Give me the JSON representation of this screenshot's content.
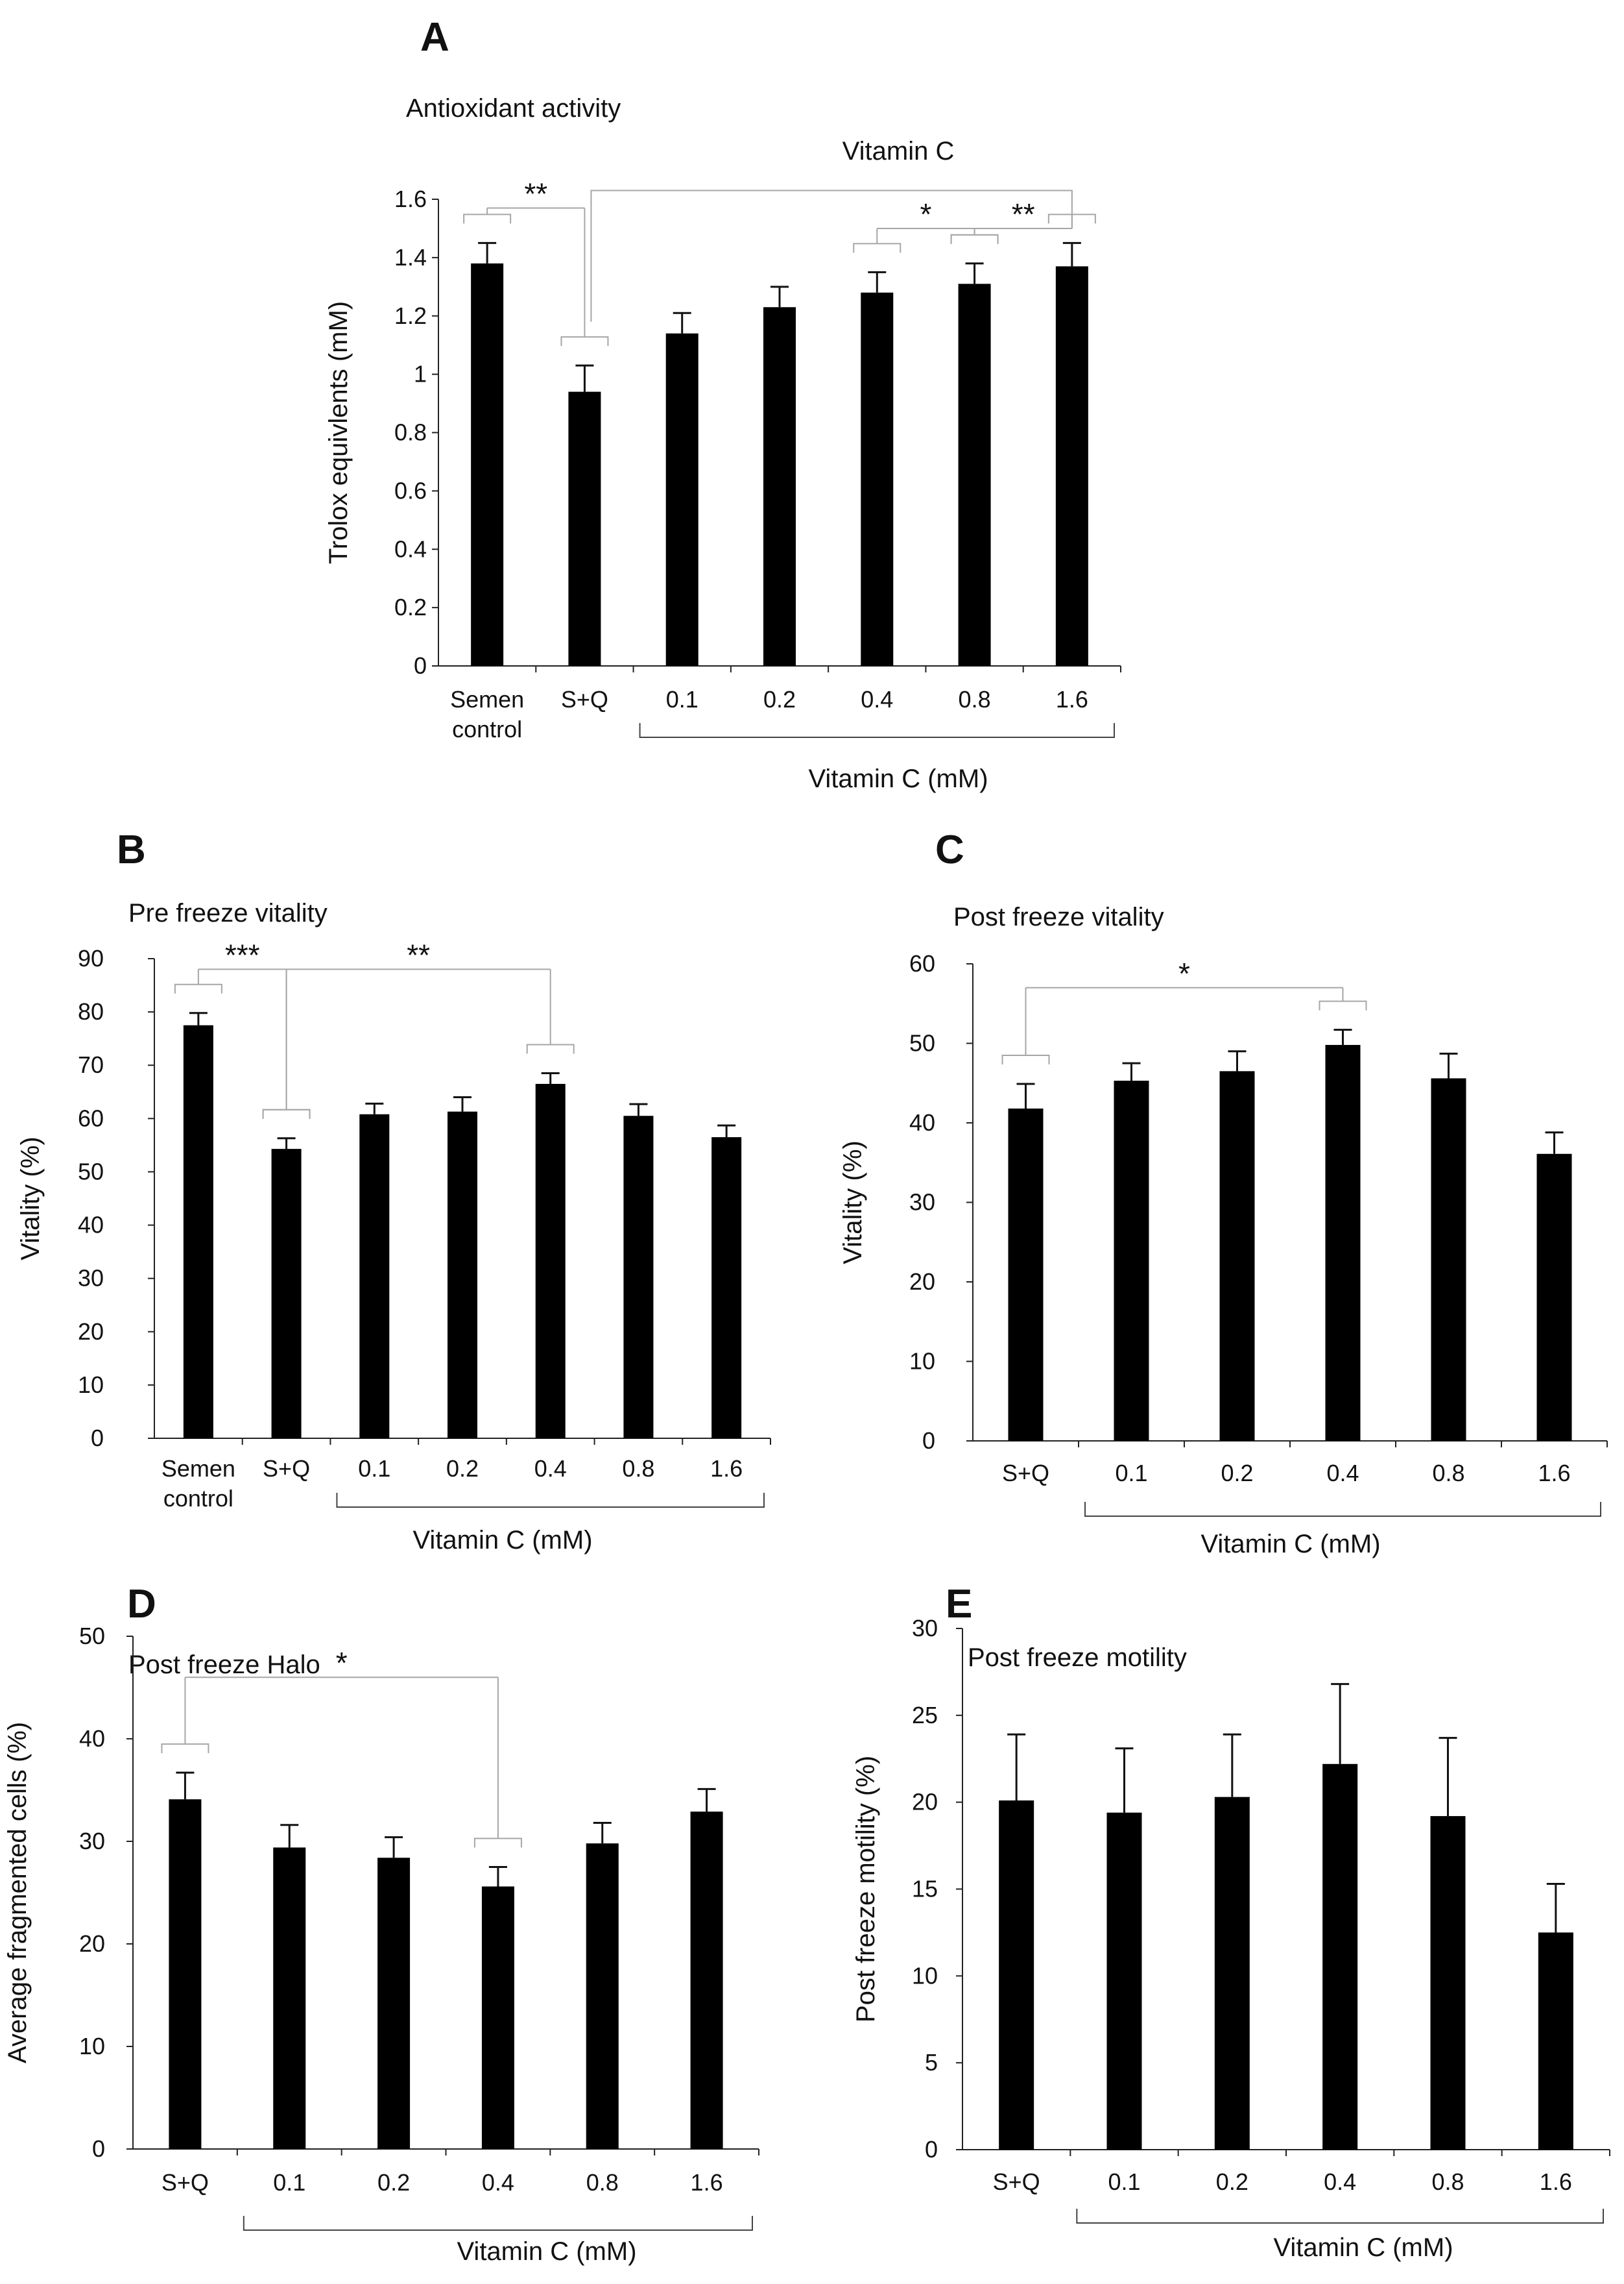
{
  "chart_data": [
    {
      "panel_letter": "A",
      "type": "bar",
      "title": "Antioxidant activity",
      "subtitle": "Vitamin C",
      "ylabel": "Trolox equivlents (mM)",
      "xlabel": "Vitamin C (mM)",
      "categories": [
        "Semen control",
        "S+Q",
        "0.1",
        "0.2",
        "0.4",
        "0.8",
        "1.6"
      ],
      "values": [
        1.38,
        0.94,
        1.14,
        1.23,
        1.28,
        1.31,
        1.37
      ],
      "errors": [
        0.07,
        0.09,
        0.07,
        0.07,
        0.07,
        0.07,
        0.08
      ],
      "ylim": [
        0,
        1.6
      ],
      "yticks": [
        "0",
        "0.2",
        "0.4",
        "0.6",
        "0.8",
        "1",
        "1.2",
        "1.4",
        "1.6"
      ],
      "annotations": [
        "**",
        "*",
        "**"
      ],
      "bar_color": "#000000",
      "bracket_color": "#a6a6a6"
    },
    {
      "panel_letter": "B",
      "type": "bar",
      "title": "Pre freeze vitality",
      "ylabel": "Vitality (%)",
      "xlabel": "Vitamin C (mM)",
      "categories": [
        "Semen control",
        "S+Q",
        "0.1",
        "0.2",
        "0.4",
        "0.8",
        "1.6"
      ],
      "values": [
        77.5,
        54.3,
        60.8,
        61.3,
        66.5,
        60.5,
        56.5
      ],
      "errors": [
        2.3,
        2.0,
        2.0,
        2.7,
        2.0,
        2.2,
        2.2
      ],
      "ylim": [
        0,
        90
      ],
      "yticks": [
        "0",
        "10",
        "20",
        "30",
        "40",
        "50",
        "60",
        "70",
        "80",
        "90"
      ],
      "annotations": [
        "***",
        "**"
      ],
      "bar_color": "#000000",
      "bracket_color": "#a6a6a6"
    },
    {
      "panel_letter": "C",
      "type": "bar",
      "title": "Post freeze vitality",
      "ylabel": "Vitality (%)",
      "xlabel": "Vitamin C (mM)",
      "categories": [
        "S+Q",
        "0.1",
        "0.2",
        "0.4",
        "0.8",
        "1.6"
      ],
      "values": [
        41.8,
        45.3,
        46.5,
        49.8,
        45.6,
        36.1
      ],
      "errors": [
        3.1,
        2.2,
        2.5,
        1.9,
        3.1,
        2.7
      ],
      "ylim": [
        0,
        60
      ],
      "yticks": [
        "0",
        "10",
        "20",
        "30",
        "40",
        "50",
        "60"
      ],
      "annotations": [
        "*"
      ],
      "bar_color": "#000000",
      "bracket_color": "#a6a6a6"
    },
    {
      "panel_letter": "D",
      "type": "bar",
      "title": "Post freeze Halo",
      "ylabel": "Average fragmented cells (%)",
      "xlabel": "Vitamin C (mM)",
      "categories": [
        "S+Q",
        "0.1",
        "0.2",
        "0.4",
        "0.8",
        "1.6"
      ],
      "values": [
        34.1,
        29.4,
        28.4,
        25.6,
        29.8,
        32.9
      ],
      "errors": [
        2.6,
        2.2,
        2.0,
        1.9,
        2.0,
        2.2
      ],
      "ylim": [
        0,
        50
      ],
      "yticks": [
        "0",
        "10",
        "20",
        "30",
        "40",
        "50"
      ],
      "annotations": [
        "*"
      ],
      "bar_color": "#000000",
      "bracket_color": "#a6a6a6"
    },
    {
      "panel_letter": "E",
      "type": "bar",
      "title": "Post freeze motility",
      "ylabel": "Post freeze motility (%)",
      "xlabel": "Vitamin C (mM)",
      "categories": [
        "S+Q",
        "0.1",
        "0.2",
        "0.4",
        "0.8",
        "1.6"
      ],
      "values": [
        20.1,
        19.4,
        20.3,
        22.2,
        19.2,
        12.5
      ],
      "errors": [
        3.8,
        3.7,
        3.6,
        4.6,
        4.5,
        2.8
      ],
      "ylim": [
        0,
        30
      ],
      "yticks": [
        "0",
        "5",
        "10",
        "15",
        "20",
        "25",
        "30"
      ],
      "annotations": [],
      "bar_color": "#000000",
      "bracket_color": "#a6a6a6"
    }
  ]
}
